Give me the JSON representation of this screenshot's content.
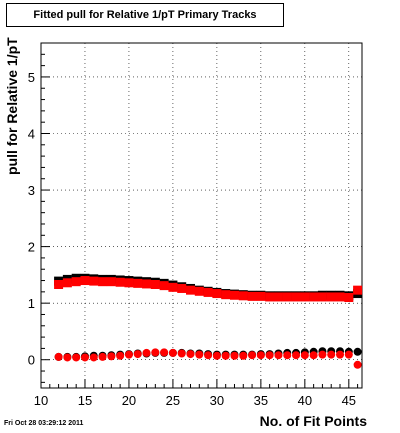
{
  "chart_data": {
    "type": "scatter",
    "title": "Fitted pull for Relative 1/pT Primary Tracks",
    "xlabel": "No. of Fit Points",
    "ylabel": "pull for Relative 1/pT",
    "xlim": [
      10,
      46.5
    ],
    "ylim": [
      -0.5,
      5.6
    ],
    "xticks": [
      10,
      15,
      20,
      25,
      30,
      35,
      40,
      45
    ],
    "yticks": [
      0,
      1,
      2,
      3,
      4,
      5
    ],
    "grid": true,
    "series": [
      {
        "marker": "square",
        "color": "#000000",
        "x": [
          12,
          13,
          14,
          15,
          16,
          17,
          18,
          19,
          20,
          21,
          22,
          23,
          24,
          25,
          26,
          27,
          28,
          29,
          30,
          31,
          32,
          33,
          34,
          35,
          36,
          37,
          38,
          39,
          40,
          41,
          42,
          43,
          44,
          45,
          46
        ],
        "y": [
          1.39,
          1.42,
          1.44,
          1.44,
          1.43,
          1.42,
          1.42,
          1.41,
          1.4,
          1.39,
          1.38,
          1.37,
          1.35,
          1.32,
          1.29,
          1.26,
          1.23,
          1.21,
          1.19,
          1.17,
          1.16,
          1.15,
          1.14,
          1.14,
          1.13,
          1.13,
          1.13,
          1.13,
          1.13,
          1.13,
          1.14,
          1.14,
          1.14,
          1.13,
          1.17
        ]
      },
      {
        "marker": "square",
        "color": "#ff0000",
        "x": [
          12,
          13,
          14,
          15,
          16,
          17,
          18,
          19,
          20,
          21,
          22,
          23,
          24,
          25,
          26,
          27,
          28,
          29,
          30,
          31,
          32,
          33,
          34,
          35,
          36,
          37,
          38,
          39,
          40,
          41,
          42,
          43,
          44,
          45,
          46
        ],
        "y": [
          1.33,
          1.36,
          1.38,
          1.4,
          1.39,
          1.38,
          1.38,
          1.37,
          1.36,
          1.35,
          1.34,
          1.33,
          1.31,
          1.28,
          1.26,
          1.23,
          1.21,
          1.19,
          1.17,
          1.15,
          1.14,
          1.13,
          1.12,
          1.12,
          1.11,
          1.11,
          1.11,
          1.11,
          1.11,
          1.11,
          1.11,
          1.11,
          1.11,
          1.1,
          1.23
        ]
      },
      {
        "marker": "circle",
        "color": "#000000",
        "x": [
          12,
          13,
          14,
          15,
          16,
          17,
          18,
          19,
          20,
          21,
          22,
          23,
          24,
          25,
          26,
          27,
          28,
          29,
          30,
          31,
          32,
          33,
          34,
          35,
          36,
          37,
          38,
          39,
          40,
          41,
          42,
          43,
          44,
          45,
          46
        ],
        "y": [
          0.05,
          0.05,
          0.05,
          0.06,
          0.07,
          0.07,
          0.08,
          0.09,
          0.1,
          0.11,
          0.11,
          0.12,
          0.12,
          0.12,
          0.12,
          0.11,
          0.11,
          0.1,
          0.09,
          0.09,
          0.09,
          0.09,
          0.09,
          0.1,
          0.1,
          0.11,
          0.12,
          0.12,
          0.13,
          0.14,
          0.15,
          0.15,
          0.15,
          0.14,
          0.14
        ]
      },
      {
        "marker": "circle",
        "color": "#ff0000",
        "x": [
          12,
          13,
          14,
          15,
          16,
          17,
          18,
          19,
          20,
          21,
          22,
          23,
          24,
          25,
          26,
          27,
          28,
          29,
          30,
          31,
          32,
          33,
          34,
          35,
          36,
          37,
          38,
          39,
          40,
          41,
          42,
          43,
          44,
          45,
          46
        ],
        "y": [
          0.05,
          0.04,
          0.04,
          0.04,
          0.04,
          0.05,
          0.06,
          0.07,
          0.09,
          0.1,
          0.12,
          0.13,
          0.13,
          0.12,
          0.11,
          0.1,
          0.09,
          0.08,
          0.07,
          0.07,
          0.07,
          0.07,
          0.08,
          0.08,
          0.08,
          0.08,
          0.08,
          0.08,
          0.08,
          0.08,
          0.09,
          0.09,
          0.09,
          0.09,
          -0.09
        ]
      }
    ]
  },
  "footer_timestamp": "Fri Oct 28 03:29:12 2011"
}
